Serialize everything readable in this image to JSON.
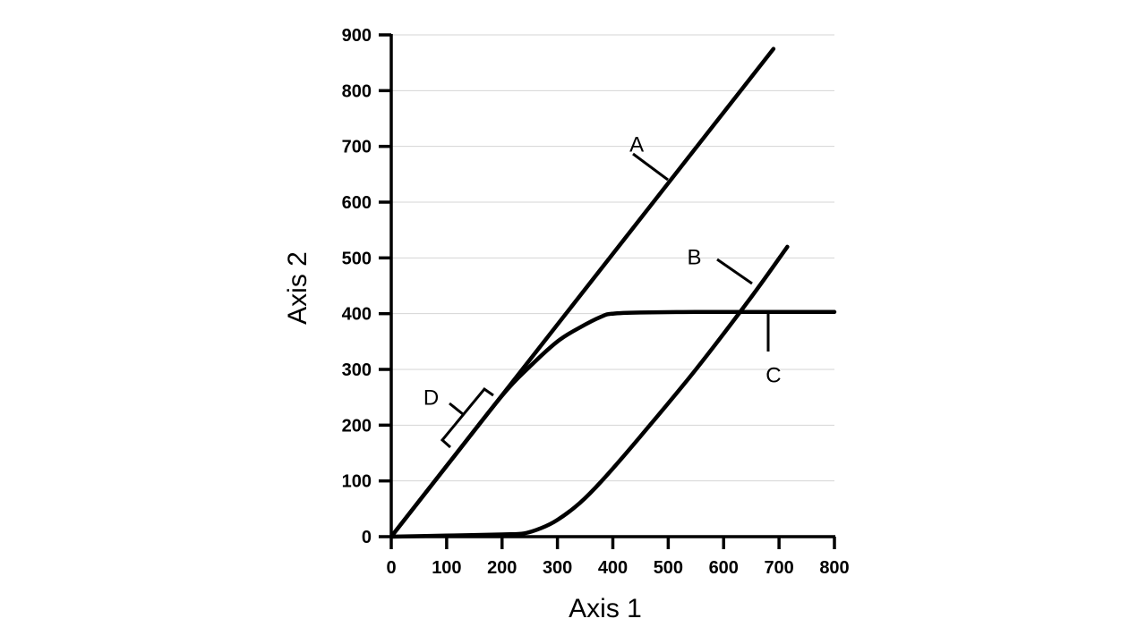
{
  "chart_data": {
    "type": "line",
    "xlabel": "Axis 1",
    "ylabel": "Axis 2",
    "xlim": [
      0,
      800
    ],
    "ylim": [
      0,
      900
    ],
    "xticks": [
      0,
      100,
      200,
      300,
      400,
      500,
      600,
      700,
      800
    ],
    "yticks": [
      0,
      100,
      200,
      300,
      400,
      500,
      600,
      700,
      800,
      900
    ],
    "grid": "horizontal",
    "series": [
      {
        "name": "A",
        "x": [
          0,
          690
        ],
        "y": [
          0,
          875
        ]
      },
      {
        "name": "B",
        "x": [
          0,
          100,
          200,
          240,
          270,
          300,
          340,
          380,
          450,
          550,
          650,
          715
        ],
        "y": [
          0,
          2,
          4,
          6,
          15,
          30,
          60,
          100,
          180,
          300,
          430,
          520
        ]
      },
      {
        "name": "C",
        "x": [
          0,
          100,
          200,
          250,
          300,
          340,
          380,
          400,
          450,
          550,
          650,
          800
        ],
        "y": [
          0,
          127,
          253,
          305,
          350,
          375,
          395,
          400,
          402,
          403,
          403,
          403
        ]
      }
    ],
    "annotations": [
      {
        "label": "A",
        "x": 443,
        "y": 705
      },
      {
        "label": "B",
        "x": 547,
        "y": 503
      },
      {
        "label": "C",
        "x": 690,
        "y": 291
      },
      {
        "label": "D",
        "x": 72,
        "y": 251
      }
    ]
  }
}
